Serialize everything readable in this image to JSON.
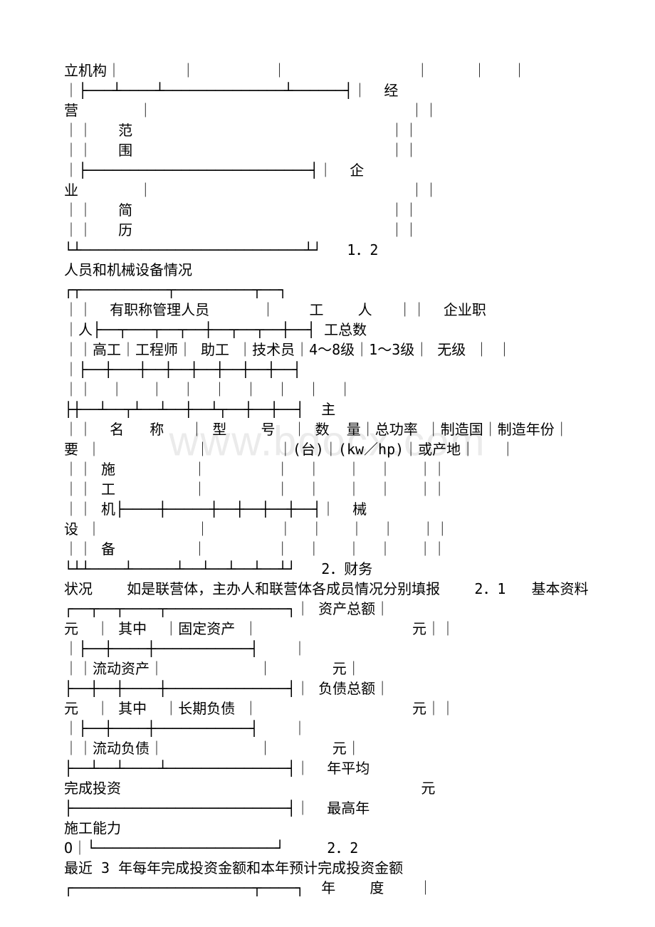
{
  "watermark": "www.bdocx.com",
  "lines": [
    "立机构｜       ｜         ｜               ｜     ｜   ｜",
    "｜├───┴────┴──────────────┴──────┤｜  经",
    "营       ｜                              ｜｜",
    "｜｜   范                              ｜｜",
    "｜｜   围                              ｜｜",
    "｜├──────────────────────────┤｜  企",
    "业       ｜                              ｜｜",
    "｜｜   简                              ｜｜",
    "｜｜   历                              ｜｜",
    "└┴──────────────────────────┴┘   1．2",
    "人员和机械设备情况",
    "┌┬──────────┬─────────┬──┐",
    "｜｜  有职称管理人员      ｜    工    人   ｜｜  企业职",
    "｜人├──┬───┬──┬──┼──┬──┬──┼──┤ 工总数",
    "｜｜高工｜工程师｜ 助工 ｜技术员｜4～8级｜1～3级｜ 无级 ｜ ｜",
    "｜├──┼───┼──┼──┼──┼──┼──┼──┤",
    "｜｜  ｜   ｜  ｜  ｜  ｜  ｜  ｜  ｜",
    "├┼──┴──┬┴──┴──┼──┴┬──┼──┼──┤  主",
    "｜｜  名   称   ｜ 型    号  ｜ 数  量｜总功率 ｜制造国｜制造年份｜",
    "要 ｜           ｜        ｜(台)｜(kw／hp)｜或产地｜   ｜",
    "｜｜ 施         ｜        ｜  ｜   ｜  ｜   ｜｜",
    "｜｜ 工         ｜        ｜  ｜   ｜  ｜   ｜｜",
    "｜｜ 机├────┼─────┼──┼──┼──┼──┤｜  械",
    "设 ｜           ｜        ｜  ｜   ｜  ｜   ｜｜",
    "｜｜ 备         ｜        ｜  ｜   ｜  ｜   ｜｜",
    "└┴┴────┴─────┴──┴──┴──┴──┴┘   2．财务",
    "状况    如是联营体，主办人和联营体各成员情况分别填报    2．1   基本资料",
    "┌──┬──┬────┬──────────────┐｜ 资产总额｜",
    "元  ｜ 其中  ｜固定资产 ｜                  元｜｜",
    "｜├──┼────┼───────────┤    ｜",
    "｜｜流动资产｜           ｜       元｜",
    "├──┼──┼────┼──────────────┤｜ 负债总额｜",
    "元  ｜ 其中  ｜长期负债 ｜                  元｜｜",
    "｜├──┼────┼───────────┤    ｜",
    "｜｜流动负债｜           ｜       元｜",
    "├──┴──┴────┴──────────────┤｜  年平均",
    "完成投资                                   元",
    "├─────────────────────────┤｜  最高年",
    "施工能力",
    "O｜└─────────────────────┘     2．2",
    "最近 3 年每年完成投资金额和本年预计完成投资金额",
    "┌─────────────────────┬────┐  年    度    ｜"
  ]
}
